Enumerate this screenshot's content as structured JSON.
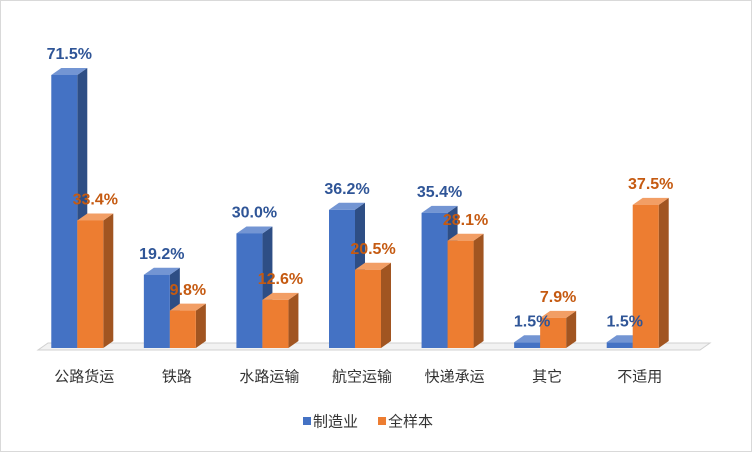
{
  "chart_data": {
    "type": "bar3d",
    "categories": [
      "公路货运",
      "铁路",
      "水路运输",
      "航空运输",
      "快递承运",
      "其它",
      "不适用"
    ],
    "series": [
      {
        "name": "制造业",
        "color": "#4472c4",
        "label_color": "#2f5597",
        "values": [
          71.5,
          19.2,
          30.0,
          36.2,
          35.4,
          1.5,
          1.5
        ],
        "value_labels": [
          "71.5%",
          "19.2%",
          "30.0%",
          "36.2%",
          "35.4%",
          "1.5%",
          "1.5%"
        ]
      },
      {
        "name": "全样本",
        "color": "#ed7d31",
        "label_color": "#c55a11",
        "values": [
          33.4,
          9.8,
          12.6,
          20.5,
          28.1,
          7.9,
          37.5
        ],
        "value_labels": [
          "33.4%",
          "9.8%",
          "12.6%",
          "20.5%",
          "28.1%",
          "7.9%",
          "37.5%"
        ]
      }
    ],
    "legend": "bottom"
  }
}
